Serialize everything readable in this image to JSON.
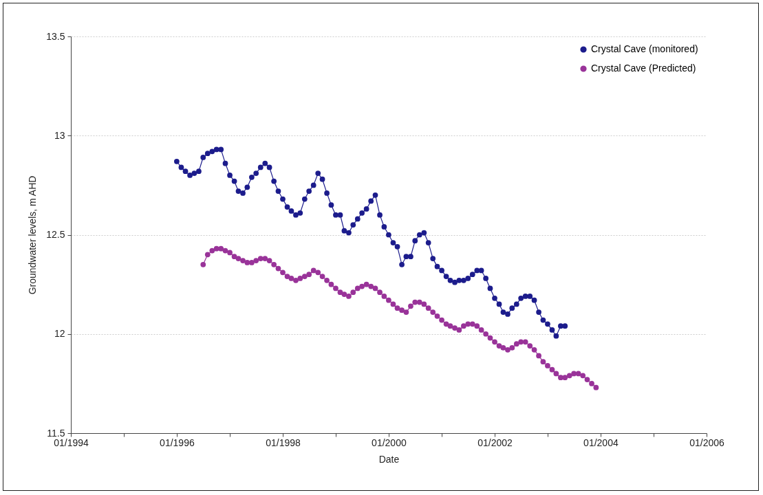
{
  "chart_data": {
    "type": "line",
    "xlabel": "Date",
    "ylabel": "Groundwater levels, m AHD",
    "xlim": [
      "1994-01",
      "2006-01"
    ],
    "xticks": [
      {
        "value": "1994-01",
        "label": "01/1994"
      },
      {
        "value": "1995-01",
        "label": null
      },
      {
        "value": "1996-01",
        "label": "01/1996"
      },
      {
        "value": "1997-01",
        "label": null
      },
      {
        "value": "1998-01",
        "label": "01/1998"
      },
      {
        "value": "1999-01",
        "label": null
      },
      {
        "value": "2000-01",
        "label": "01/2000"
      },
      {
        "value": "2001-01",
        "label": null
      },
      {
        "value": "2002-01",
        "label": "01/2002"
      },
      {
        "value": "2003-01",
        "label": null
      },
      {
        "value": "2004-01",
        "label": "01/2004"
      },
      {
        "value": "2005-01",
        "label": null
      },
      {
        "value": "2006-01",
        "label": "01/2006"
      }
    ],
    "ylim": [
      11.5,
      13.5
    ],
    "yticks": [
      11.5,
      12,
      12.5,
      13,
      13.5
    ],
    "grid": "y",
    "legend": "top right",
    "marker": "circle",
    "line_style": "solid",
    "series": [
      {
        "name": "Crystal Cave (monitored)",
        "color": "#1c1c8c",
        "x": [
          "1996-01",
          "1996-02",
          "1996-03",
          "1996-04",
          "1996-05",
          "1996-06",
          "1996-07",
          "1996-08",
          "1996-09",
          "1996-10",
          "1996-11",
          "1996-12",
          "1997-01",
          "1997-02",
          "1997-03",
          "1997-04",
          "1997-05",
          "1997-06",
          "1997-07",
          "1997-08",
          "1997-09",
          "1997-10",
          "1997-11",
          "1997-12",
          "1998-01",
          "1998-02",
          "1998-03",
          "1998-04",
          "1998-05",
          "1998-06",
          "1998-07",
          "1998-08",
          "1998-09",
          "1998-10",
          "1998-11",
          "1998-12",
          "1999-01",
          "1999-02",
          "1999-03",
          "1999-04",
          "1999-05",
          "1999-06",
          "1999-07",
          "1999-08",
          "1999-09",
          "1999-10",
          "1999-11",
          "1999-12",
          "2000-01",
          "2000-02",
          "2000-03",
          "2000-04",
          "2000-05",
          "2000-06",
          "2000-07",
          "2000-08",
          "2000-09",
          "2000-10",
          "2000-11",
          "2000-12",
          "2001-01",
          "2001-02",
          "2001-03",
          "2001-04",
          "2001-05",
          "2001-06",
          "2001-07",
          "2001-08",
          "2001-09",
          "2001-10",
          "2001-11",
          "2001-12",
          "2002-01",
          "2002-02",
          "2002-03",
          "2002-04",
          "2002-05",
          "2002-06",
          "2002-07",
          "2002-08",
          "2002-09",
          "2002-10",
          "2002-11",
          "2002-12",
          "2003-01",
          "2003-02",
          "2003-03",
          "2003-04",
          "2003-05"
        ],
        "values": [
          12.87,
          12.84,
          12.82,
          12.8,
          12.81,
          12.82,
          12.89,
          12.91,
          12.92,
          12.93,
          12.93,
          12.86,
          12.8,
          12.77,
          12.72,
          12.71,
          12.74,
          12.79,
          12.81,
          12.84,
          12.86,
          12.84,
          12.77,
          12.72,
          12.68,
          12.64,
          12.62,
          12.6,
          12.61,
          12.68,
          12.72,
          12.75,
          12.81,
          12.78,
          12.71,
          12.65,
          12.6,
          12.6,
          12.52,
          12.51,
          12.55,
          12.58,
          12.61,
          12.63,
          12.67,
          12.7,
          12.6,
          12.54,
          12.5,
          12.46,
          12.44,
          12.35,
          12.39,
          12.39,
          12.47,
          12.5,
          12.51,
          12.46,
          12.38,
          12.34,
          12.32,
          12.29,
          12.27,
          12.26,
          12.27,
          12.27,
          12.28,
          12.3,
          12.32,
          12.32,
          12.28,
          12.23,
          12.18,
          12.15,
          12.11,
          12.1,
          12.13,
          12.15,
          12.18,
          12.19,
          12.19,
          12.17,
          12.11,
          12.07,
          12.05,
          12.02,
          11.99,
          12.04,
          12.04
        ]
      },
      {
        "name": "Crystal Cave (Predicted)",
        "color": "#993399",
        "x": [
          "1996-07",
          "1996-08",
          "1996-09",
          "1996-10",
          "1996-11",
          "1996-12",
          "1997-01",
          "1997-02",
          "1997-03",
          "1997-04",
          "1997-05",
          "1997-06",
          "1997-07",
          "1997-08",
          "1997-09",
          "1997-10",
          "1997-11",
          "1997-12",
          "1998-01",
          "1998-02",
          "1998-03",
          "1998-04",
          "1998-05",
          "1998-06",
          "1998-07",
          "1998-08",
          "1998-09",
          "1998-10",
          "1998-11",
          "1998-12",
          "1999-01",
          "1999-02",
          "1999-03",
          "1999-04",
          "1999-05",
          "1999-06",
          "1999-07",
          "1999-08",
          "1999-09",
          "1999-10",
          "1999-11",
          "1999-12",
          "2000-01",
          "2000-02",
          "2000-03",
          "2000-04",
          "2000-05",
          "2000-06",
          "2000-07",
          "2000-08",
          "2000-09",
          "2000-10",
          "2000-11",
          "2000-12",
          "2001-01",
          "2001-02",
          "2001-03",
          "2001-04",
          "2001-05",
          "2001-06",
          "2001-07",
          "2001-08",
          "2001-09",
          "2001-10",
          "2001-11",
          "2001-12",
          "2002-01",
          "2002-02",
          "2002-03",
          "2002-04",
          "2002-05",
          "2002-06",
          "2002-07",
          "2002-08",
          "2002-09",
          "2002-10",
          "2002-11",
          "2002-12",
          "2003-01",
          "2003-02",
          "2003-03",
          "2003-04",
          "2003-05",
          "2003-06",
          "2003-07",
          "2003-08",
          "2003-09",
          "2003-10",
          "2003-11",
          "2003-12"
        ],
        "values": [
          12.35,
          12.4,
          12.42,
          12.43,
          12.43,
          12.42,
          12.41,
          12.39,
          12.38,
          12.37,
          12.36,
          12.36,
          12.37,
          12.38,
          12.38,
          12.37,
          12.35,
          12.33,
          12.31,
          12.29,
          12.28,
          12.27,
          12.28,
          12.29,
          12.3,
          12.32,
          12.31,
          12.29,
          12.27,
          12.25,
          12.23,
          12.21,
          12.2,
          12.19,
          12.21,
          12.23,
          12.24,
          12.25,
          12.24,
          12.23,
          12.21,
          12.19,
          12.17,
          12.15,
          12.13,
          12.12,
          12.11,
          12.14,
          12.16,
          12.16,
          12.15,
          12.13,
          12.11,
          12.09,
          12.07,
          12.05,
          12.04,
          12.03,
          12.02,
          12.04,
          12.05,
          12.05,
          12.04,
          12.02,
          12.0,
          11.98,
          11.96,
          11.94,
          11.93,
          11.92,
          11.93,
          11.95,
          11.96,
          11.96,
          11.94,
          11.92,
          11.89,
          11.86,
          11.84,
          11.82,
          11.8,
          11.78,
          11.78,
          11.79,
          11.8,
          11.8,
          11.79,
          11.77,
          11.75,
          11.73
        ]
      }
    ]
  }
}
